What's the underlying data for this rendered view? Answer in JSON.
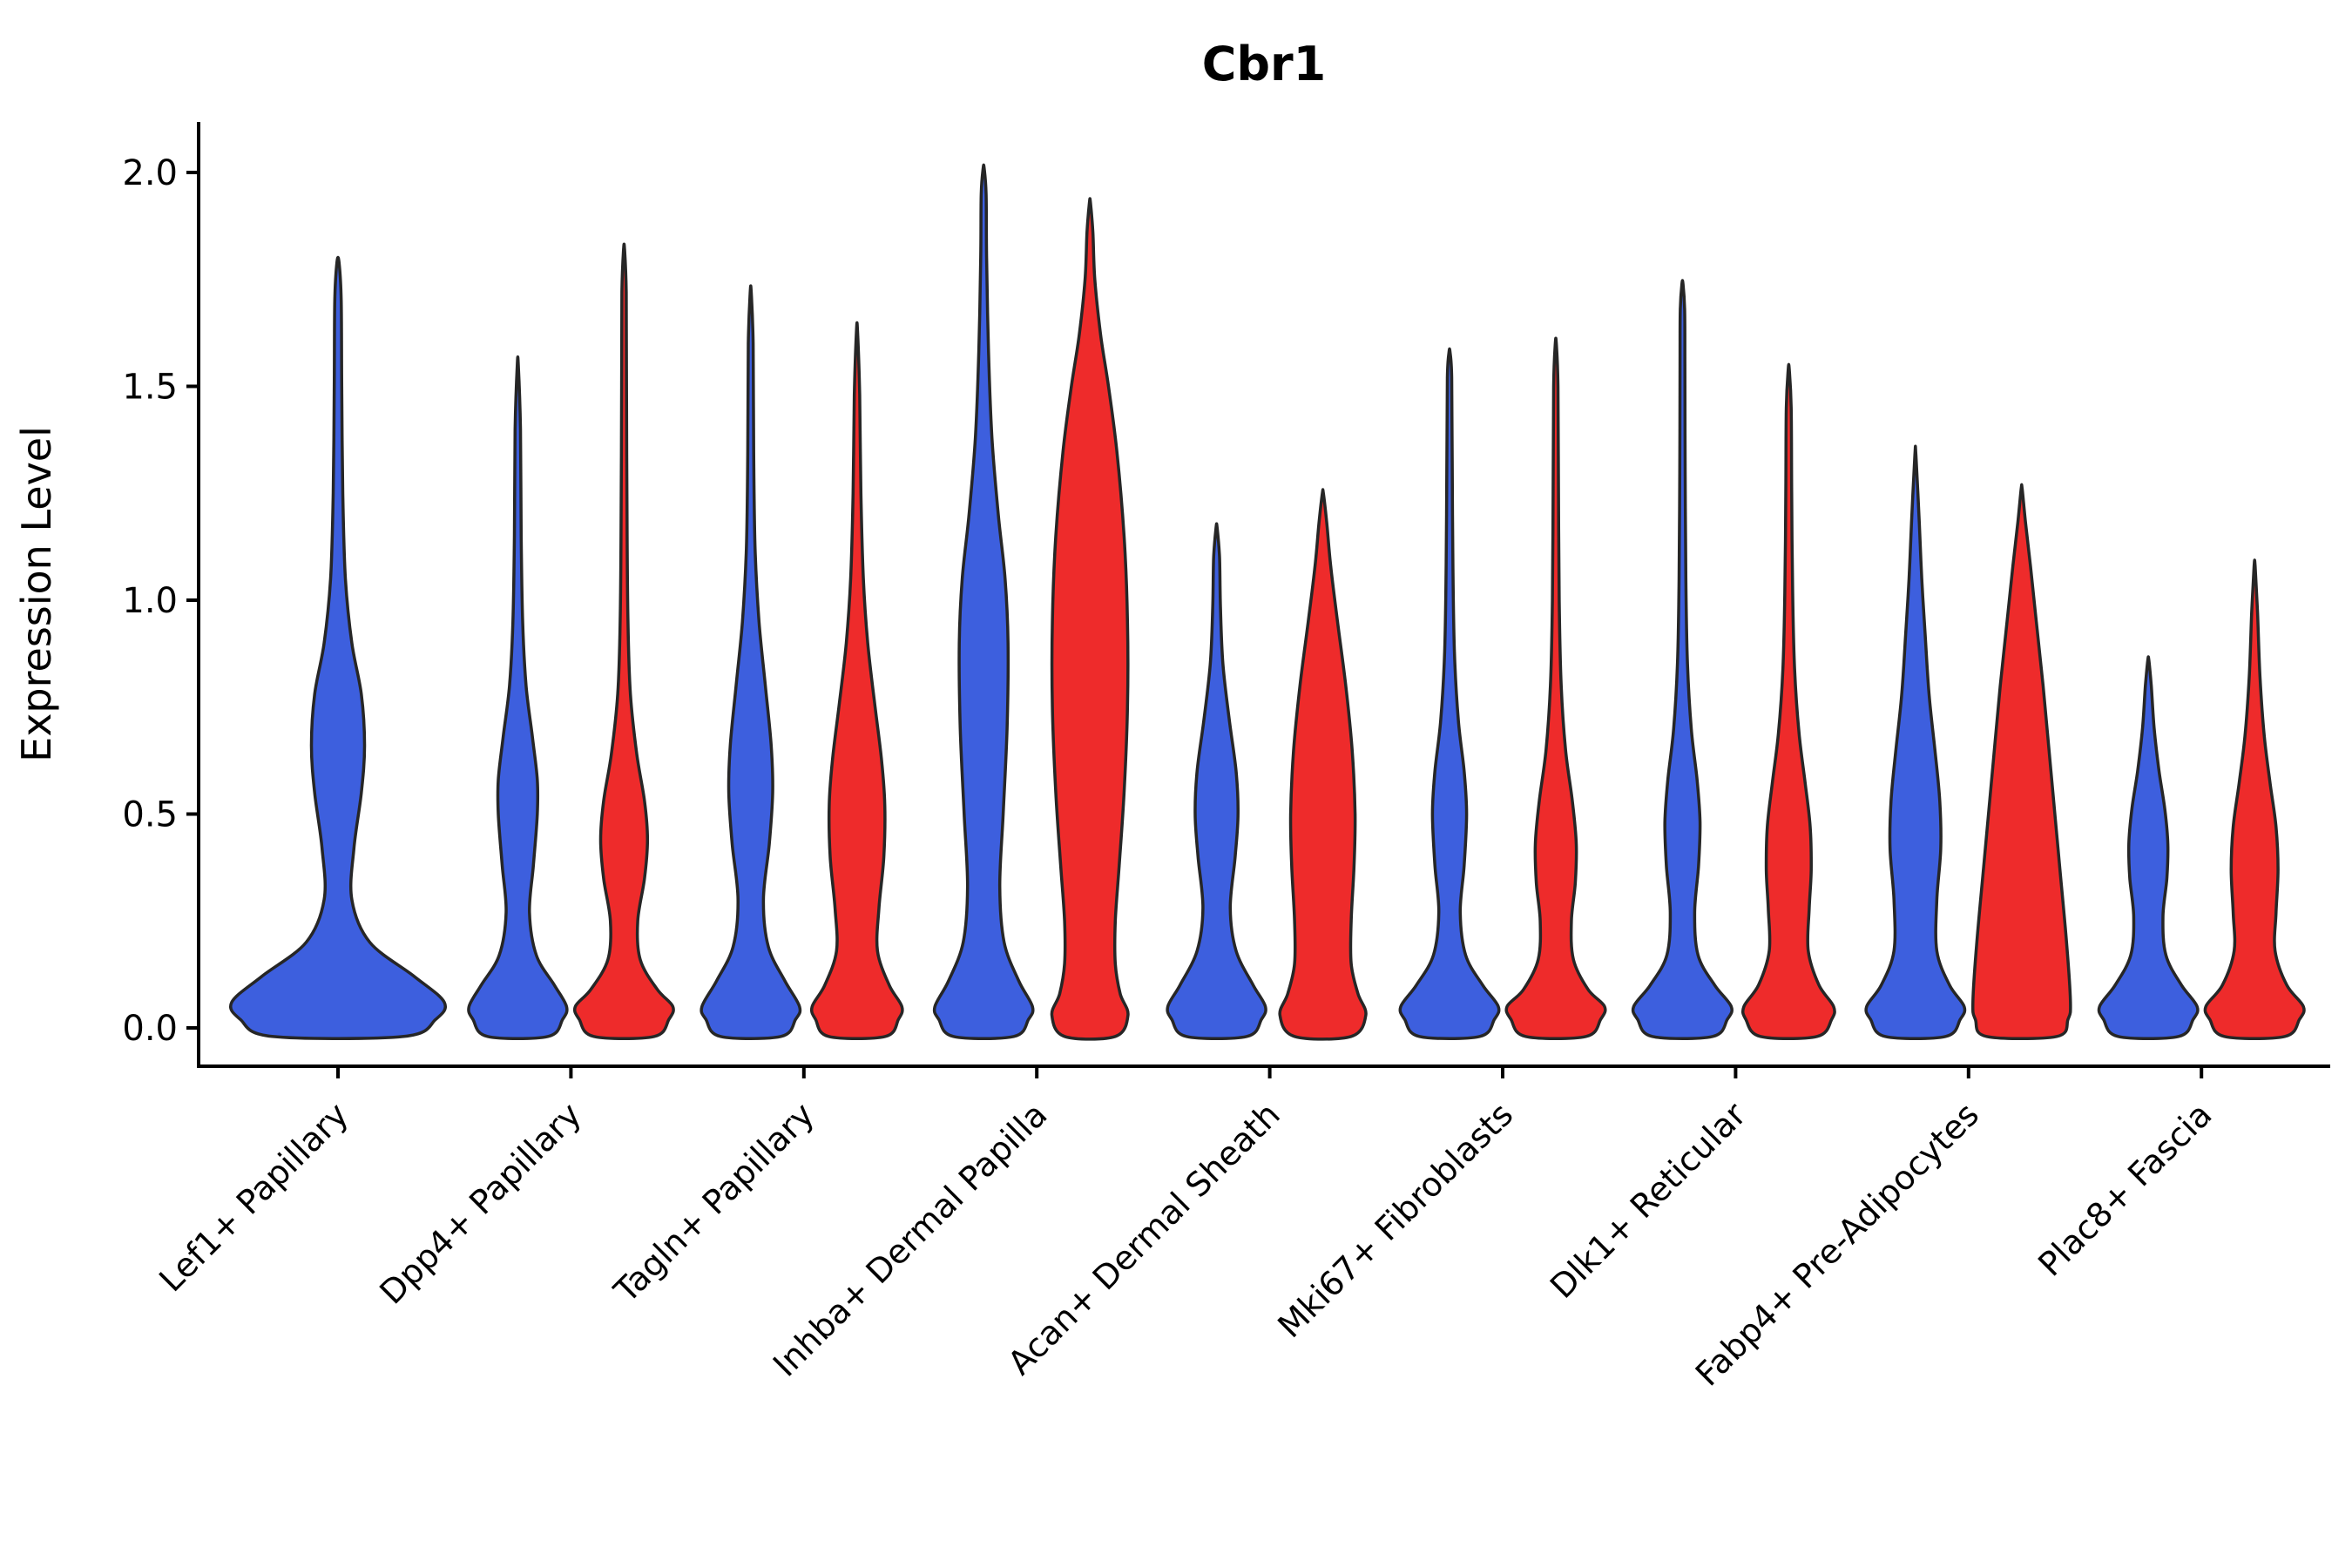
{
  "colors": {
    "blue": "#3D5FDE",
    "red": "#EE2B2B",
    "edge": "#262626",
    "axis": "#000000"
  },
  "chart_data": {
    "type": "violin",
    "title": "Cbr1",
    "ylabel": "Expression Level",
    "xlabel": "",
    "ylim": [
      -0.09,
      2.12
    ],
    "yticks": [
      0.0,
      0.5,
      1.0,
      1.5,
      2.0
    ],
    "ytick_labels": [
      "0.0",
      "0.5",
      "1.0",
      "1.5",
      "2.0"
    ],
    "grid": false,
    "legend": "none",
    "categories": [
      "Lef1+ Papillary",
      "Dpp4+ Papillary",
      "Tagln+ Papillary",
      "Inhba+ Dermal Papilla",
      "Acan+ Dermal Sheath",
      "Mki67+ Fibroblasts",
      "Dlk1+ Reticular",
      "Fabp4+ Pre-Adipocytes",
      "Plac8+ Fascia"
    ],
    "violins": [
      {
        "category_index": 0,
        "side": "single",
        "color": "blue",
        "max_expression": 1.79,
        "profile": [
          [
            -0.02,
            0.62
          ],
          [
            0.02,
            0.92
          ],
          [
            0.06,
            1.0
          ],
          [
            0.12,
            0.72
          ],
          [
            0.2,
            0.3
          ],
          [
            0.3,
            0.13
          ],
          [
            0.42,
            0.15
          ],
          [
            0.55,
            0.22
          ],
          [
            0.66,
            0.25
          ],
          [
            0.78,
            0.22
          ],
          [
            0.9,
            0.13
          ],
          [
            1.05,
            0.07
          ],
          [
            1.25,
            0.045
          ],
          [
            1.5,
            0.035
          ],
          [
            1.7,
            0.03
          ],
          [
            1.79,
            0.01
          ]
        ]
      },
      {
        "category_index": 1,
        "side": "left",
        "color": "blue",
        "max_expression": 1.55,
        "profile": [
          [
            -0.02,
            0.62
          ],
          [
            0.02,
            0.92
          ],
          [
            0.05,
            1.0
          ],
          [
            0.1,
            0.75
          ],
          [
            0.17,
            0.38
          ],
          [
            0.27,
            0.24
          ],
          [
            0.38,
            0.32
          ],
          [
            0.5,
            0.4
          ],
          [
            0.58,
            0.4
          ],
          [
            0.68,
            0.3
          ],
          [
            0.8,
            0.17
          ],
          [
            0.95,
            0.1
          ],
          [
            1.15,
            0.07
          ],
          [
            1.4,
            0.055
          ],
          [
            1.55,
            0.01
          ]
        ]
      },
      {
        "category_index": 1,
        "side": "right",
        "color": "red",
        "max_expression": 1.82,
        "profile": [
          [
            -0.02,
            0.62
          ],
          [
            0.02,
            0.92
          ],
          [
            0.05,
            1.0
          ],
          [
            0.09,
            0.68
          ],
          [
            0.16,
            0.33
          ],
          [
            0.25,
            0.28
          ],
          [
            0.35,
            0.42
          ],
          [
            0.44,
            0.48
          ],
          [
            0.53,
            0.42
          ],
          [
            0.64,
            0.26
          ],
          [
            0.78,
            0.13
          ],
          [
            0.95,
            0.08
          ],
          [
            1.2,
            0.06
          ],
          [
            1.5,
            0.05
          ],
          [
            1.72,
            0.045
          ],
          [
            1.82,
            0.01
          ]
        ]
      },
      {
        "category_index": 2,
        "side": "left",
        "color": "blue",
        "max_expression": 1.72,
        "profile": [
          [
            -0.02,
            0.62
          ],
          [
            0.02,
            0.92
          ],
          [
            0.05,
            1.0
          ],
          [
            0.11,
            0.7
          ],
          [
            0.19,
            0.36
          ],
          [
            0.3,
            0.26
          ],
          [
            0.43,
            0.38
          ],
          [
            0.55,
            0.45
          ],
          [
            0.66,
            0.42
          ],
          [
            0.8,
            0.3
          ],
          [
            0.95,
            0.17
          ],
          [
            1.12,
            0.09
          ],
          [
            1.35,
            0.06
          ],
          [
            1.6,
            0.05
          ],
          [
            1.72,
            0.01
          ]
        ]
      },
      {
        "category_index": 2,
        "side": "right",
        "color": "red",
        "max_expression": 1.63,
        "profile": [
          [
            -0.02,
            0.58
          ],
          [
            0.02,
            0.85
          ],
          [
            0.05,
            0.92
          ],
          [
            0.1,
            0.66
          ],
          [
            0.18,
            0.42
          ],
          [
            0.28,
            0.45
          ],
          [
            0.4,
            0.55
          ],
          [
            0.52,
            0.57
          ],
          [
            0.63,
            0.5
          ],
          [
            0.76,
            0.36
          ],
          [
            0.9,
            0.22
          ],
          [
            1.05,
            0.13
          ],
          [
            1.25,
            0.08
          ],
          [
            1.48,
            0.055
          ],
          [
            1.63,
            0.01
          ]
        ]
      },
      {
        "category_index": 3,
        "side": "left",
        "color": "blue",
        "max_expression": 2.01,
        "profile": [
          [
            -0.02,
            0.62
          ],
          [
            0.02,
            0.92
          ],
          [
            0.05,
            1.0
          ],
          [
            0.11,
            0.72
          ],
          [
            0.2,
            0.42
          ],
          [
            0.33,
            0.33
          ],
          [
            0.5,
            0.4
          ],
          [
            0.7,
            0.48
          ],
          [
            0.9,
            0.5
          ],
          [
            1.05,
            0.44
          ],
          [
            1.2,
            0.3
          ],
          [
            1.38,
            0.17
          ],
          [
            1.58,
            0.1
          ],
          [
            1.8,
            0.06
          ],
          [
            1.95,
            0.05
          ],
          [
            2.01,
            0.01
          ]
        ]
      },
      {
        "category_index": 3,
        "side": "right",
        "color": "red",
        "max_expression": 1.93,
        "profile": [
          [
            -0.02,
            0.52
          ],
          [
            0.03,
            0.78
          ],
          [
            0.08,
            0.62
          ],
          [
            0.15,
            0.52
          ],
          [
            0.25,
            0.52
          ],
          [
            0.38,
            0.6
          ],
          [
            0.55,
            0.7
          ],
          [
            0.75,
            0.77
          ],
          [
            0.95,
            0.77
          ],
          [
            1.15,
            0.7
          ],
          [
            1.35,
            0.55
          ],
          [
            1.5,
            0.38
          ],
          [
            1.62,
            0.22
          ],
          [
            1.75,
            0.1
          ],
          [
            1.86,
            0.06
          ],
          [
            1.93,
            0.01
          ]
        ]
      },
      {
        "category_index": 4,
        "side": "left",
        "color": "blue",
        "max_expression": 1.17,
        "profile": [
          [
            -0.02,
            0.62
          ],
          [
            0.02,
            0.92
          ],
          [
            0.05,
            1.0
          ],
          [
            0.1,
            0.75
          ],
          [
            0.18,
            0.4
          ],
          [
            0.28,
            0.28
          ],
          [
            0.4,
            0.38
          ],
          [
            0.5,
            0.44
          ],
          [
            0.6,
            0.4
          ],
          [
            0.72,
            0.26
          ],
          [
            0.85,
            0.13
          ],
          [
            0.98,
            0.08
          ],
          [
            1.1,
            0.06
          ],
          [
            1.17,
            0.01
          ]
        ]
      },
      {
        "category_index": 4,
        "side": "right",
        "color": "red",
        "max_expression": 1.25,
        "profile": [
          [
            -0.02,
            0.58
          ],
          [
            0.03,
            0.88
          ],
          [
            0.08,
            0.72
          ],
          [
            0.15,
            0.58
          ],
          [
            0.25,
            0.58
          ],
          [
            0.38,
            0.64
          ],
          [
            0.5,
            0.66
          ],
          [
            0.65,
            0.6
          ],
          [
            0.8,
            0.47
          ],
          [
            0.95,
            0.3
          ],
          [
            1.08,
            0.16
          ],
          [
            1.18,
            0.08
          ],
          [
            1.25,
            0.01
          ]
        ]
      },
      {
        "category_index": 5,
        "side": "left",
        "color": "blue",
        "max_expression": 1.58,
        "profile": [
          [
            -0.02,
            0.62
          ],
          [
            0.02,
            0.92
          ],
          [
            0.05,
            1.0
          ],
          [
            0.1,
            0.68
          ],
          [
            0.17,
            0.33
          ],
          [
            0.27,
            0.22
          ],
          [
            0.38,
            0.3
          ],
          [
            0.5,
            0.35
          ],
          [
            0.6,
            0.3
          ],
          [
            0.72,
            0.18
          ],
          [
            0.88,
            0.1
          ],
          [
            1.08,
            0.07
          ],
          [
            1.32,
            0.055
          ],
          [
            1.52,
            0.045
          ],
          [
            1.58,
            0.01
          ]
        ]
      },
      {
        "category_index": 5,
        "side": "right",
        "color": "red",
        "max_expression": 1.6,
        "profile": [
          [
            -0.02,
            0.62
          ],
          [
            0.02,
            0.92
          ],
          [
            0.05,
            1.0
          ],
          [
            0.09,
            0.66
          ],
          [
            0.16,
            0.36
          ],
          [
            0.25,
            0.32
          ],
          [
            0.34,
            0.4
          ],
          [
            0.43,
            0.42
          ],
          [
            0.53,
            0.34
          ],
          [
            0.65,
            0.2
          ],
          [
            0.8,
            0.11
          ],
          [
            1.0,
            0.07
          ],
          [
            1.25,
            0.055
          ],
          [
            1.5,
            0.045
          ],
          [
            1.6,
            0.01
          ]
        ]
      },
      {
        "category_index": 6,
        "side": "left",
        "color": "blue",
        "max_expression": 1.74,
        "profile": [
          [
            -0.02,
            0.62
          ],
          [
            0.02,
            0.92
          ],
          [
            0.05,
            1.0
          ],
          [
            0.1,
            0.66
          ],
          [
            0.17,
            0.32
          ],
          [
            0.27,
            0.25
          ],
          [
            0.38,
            0.33
          ],
          [
            0.48,
            0.36
          ],
          [
            0.58,
            0.3
          ],
          [
            0.7,
            0.18
          ],
          [
            0.86,
            0.1
          ],
          [
            1.05,
            0.07
          ],
          [
            1.3,
            0.055
          ],
          [
            1.55,
            0.05
          ],
          [
            1.68,
            0.045
          ],
          [
            1.74,
            0.01
          ]
        ]
      },
      {
        "category_index": 6,
        "side": "right",
        "color": "red",
        "max_expression": 1.54,
        "profile": [
          [
            -0.02,
            0.58
          ],
          [
            0.02,
            0.88
          ],
          [
            0.05,
            0.92
          ],
          [
            0.1,
            0.62
          ],
          [
            0.18,
            0.4
          ],
          [
            0.28,
            0.42
          ],
          [
            0.37,
            0.46
          ],
          [
            0.47,
            0.44
          ],
          [
            0.57,
            0.34
          ],
          [
            0.69,
            0.21
          ],
          [
            0.84,
            0.12
          ],
          [
            1.02,
            0.08
          ],
          [
            1.25,
            0.06
          ],
          [
            1.45,
            0.05
          ],
          [
            1.54,
            0.01
          ]
        ]
      },
      {
        "category_index": 7,
        "side": "left",
        "color": "blue",
        "max_expression": 1.34,
        "profile": [
          [
            -0.02,
            0.62
          ],
          [
            0.02,
            0.92
          ],
          [
            0.05,
            1.0
          ],
          [
            0.1,
            0.7
          ],
          [
            0.18,
            0.44
          ],
          [
            0.3,
            0.44
          ],
          [
            0.42,
            0.52
          ],
          [
            0.53,
            0.5
          ],
          [
            0.65,
            0.4
          ],
          [
            0.78,
            0.28
          ],
          [
            0.92,
            0.2
          ],
          [
            1.05,
            0.13
          ],
          [
            1.18,
            0.08
          ],
          [
            1.34,
            0.01
          ]
        ]
      },
      {
        "category_index": 7,
        "side": "right",
        "color": "red",
        "max_expression": 1.26,
        "profile": [
          [
            -0.02,
            0.72
          ],
          [
            0.02,
            0.95
          ],
          [
            0.06,
            1.0
          ],
          [
            0.2,
            0.92
          ],
          [
            0.4,
            0.76
          ],
          [
            0.6,
            0.6
          ],
          [
            0.8,
            0.44
          ],
          [
            0.95,
            0.3
          ],
          [
            1.08,
            0.18
          ],
          [
            1.18,
            0.08
          ],
          [
            1.26,
            0.01
          ]
        ]
      },
      {
        "category_index": 8,
        "side": "left",
        "color": "blue",
        "max_expression": 0.86,
        "profile": [
          [
            -0.02,
            0.62
          ],
          [
            0.02,
            0.92
          ],
          [
            0.05,
            1.0
          ],
          [
            0.1,
            0.68
          ],
          [
            0.17,
            0.36
          ],
          [
            0.26,
            0.3
          ],
          [
            0.35,
            0.38
          ],
          [
            0.43,
            0.4
          ],
          [
            0.51,
            0.34
          ],
          [
            0.6,
            0.22
          ],
          [
            0.7,
            0.12
          ],
          [
            0.8,
            0.06
          ],
          [
            0.86,
            0.01
          ]
        ]
      },
      {
        "category_index": 8,
        "side": "right",
        "color": "red",
        "max_expression": 1.08,
        "profile": [
          [
            -0.02,
            0.62
          ],
          [
            0.02,
            0.92
          ],
          [
            0.05,
            1.0
          ],
          [
            0.1,
            0.66
          ],
          [
            0.18,
            0.42
          ],
          [
            0.27,
            0.44
          ],
          [
            0.37,
            0.48
          ],
          [
            0.47,
            0.44
          ],
          [
            0.57,
            0.32
          ],
          [
            0.68,
            0.2
          ],
          [
            0.82,
            0.11
          ],
          [
            0.97,
            0.06
          ],
          [
            1.08,
            0.01
          ]
        ]
      }
    ]
  }
}
